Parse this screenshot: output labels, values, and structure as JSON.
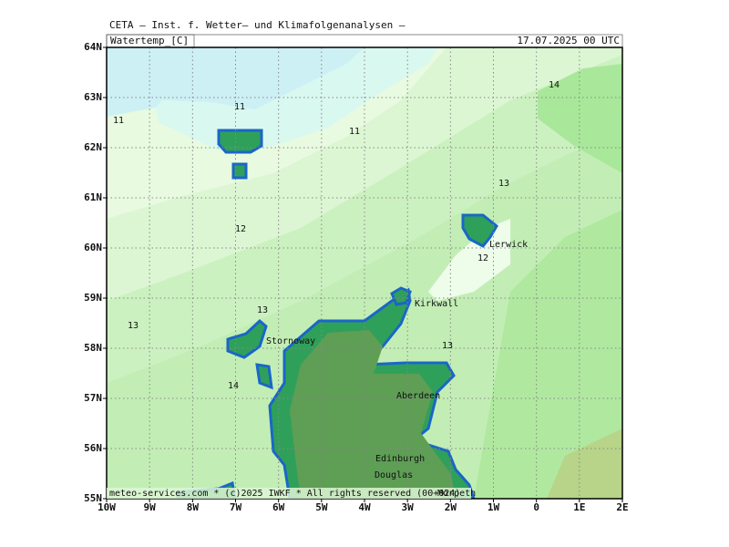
{
  "header": {
    "institute": "CETA – Inst. f. Wetter– und Klimafolgenanalysen –",
    "parameter": "Watertemp_[C]",
    "datetime": "17.07.2025 00 UTC"
  },
  "map": {
    "lat_labels": [
      "64N",
      "63N",
      "62N",
      "61N",
      "60N",
      "59N",
      "58N",
      "57N",
      "56N",
      "55N"
    ],
    "lon_labels": [
      "10W",
      "9W",
      "8W",
      "7W",
      "6W",
      "5W",
      "4W",
      "3W",
      "2W",
      "1W",
      "0",
      "1E",
      "2E"
    ],
    "contour_labels": [
      "11",
      "11",
      "11",
      "14",
      "13",
      "12",
      "12",
      "13",
      "13",
      "13",
      "14"
    ],
    "places": [
      "Lerwick",
      "Kirkwall",
      "Stornoway",
      "Aberdeen",
      "Edinburgh",
      "Douglas",
      "Morpeth"
    ]
  },
  "footer": "meteo-services.com * (c)2025 IWKF * All rights reserved (00+024)"
}
